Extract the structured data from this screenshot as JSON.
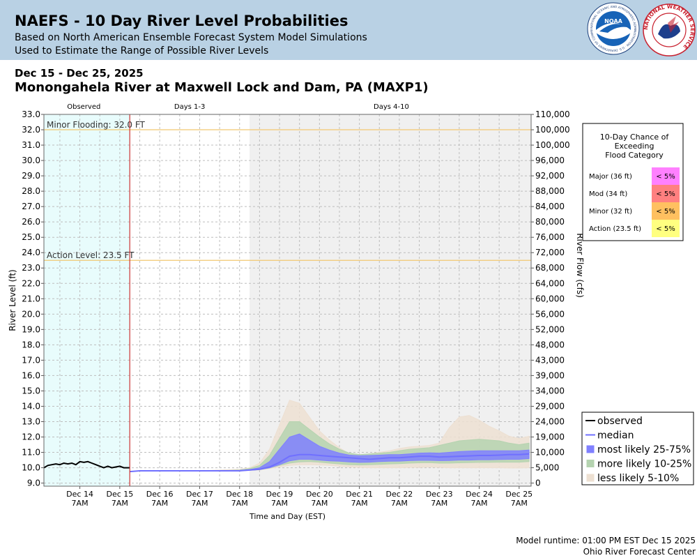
{
  "header": {
    "title": "NAEFS - 10 Day River Level Probabilities",
    "subtitle1": "Based on North American Ensemble Forecast System Model Simulations",
    "subtitle2": "Used to Estimate the Range of Possible River Levels",
    "noaa_logo_text": "NATIONAL OCEANIC AND ATMOSPHERIC ADMINISTRATION · U.S. DEPARTMENT OF COMMERCE",
    "noaa_logo_center": "NOAA",
    "nws_logo_text": "NATIONAL WEATHER SERVICE"
  },
  "date_range": "Dec 15 - Dec 25, 2025",
  "station": "Monongahela River at Maxwell Lock and Dam, PA (MAXP1)",
  "footer": {
    "runtime": "Model runtime: 01:00 PM EST Dec 15 2025",
    "center": "Ohio River Forecast Center"
  },
  "colors": {
    "observed_bg": "#e8fcfc",
    "forecast_bg": "#f0f0f0",
    "observed": "#000000",
    "median": "#7070ff",
    "band_25_75": "#8080ff",
    "band_10_25": "#b5d3b0",
    "band_5_10": "#ede0d2",
    "threshold_line": "#f2c870",
    "now_line": "#cc3333"
  },
  "chart_data": {
    "type": "area",
    "xlabel": "Time and Day (EST)",
    "ylabel": "River Level (ft)",
    "ylabel_right": "River Flow (cfs)",
    "ylim": [
      8.8,
      33.0
    ],
    "xlim": [
      13.1,
      25.3
    ],
    "now_x": 15.25,
    "forecast_shade_start": 18.25,
    "yticks": [
      "9.0",
      "10.0",
      "11.0",
      "12.0",
      "13.0",
      "14.0",
      "15.0",
      "16.0",
      "17.0",
      "18.0",
      "19.0",
      "20.0",
      "21.0",
      "22.0",
      "23.0",
      "24.0",
      "25.0",
      "26.0",
      "27.0",
      "28.0",
      "29.0",
      "30.0",
      "31.0",
      "32.0",
      "33.0"
    ],
    "flow_ticks": [
      {
        "stage": 9.0,
        "label": "0"
      },
      {
        "stage": 10.0,
        "label": "5,000"
      },
      {
        "stage": 11.0,
        "label": "10,000"
      },
      {
        "stage": 12.0,
        "label": "19,000"
      },
      {
        "stage": 13.0,
        "label": "24,000"
      },
      {
        "stage": 14.0,
        "label": "29,000"
      },
      {
        "stage": 15.0,
        "label": "34,000"
      },
      {
        "stage": 16.0,
        "label": "39,000"
      },
      {
        "stage": 17.0,
        "label": "43,000"
      },
      {
        "stage": 18.0,
        "label": "48,000"
      },
      {
        "stage": 19.0,
        "label": "52,000"
      },
      {
        "stage": 20.0,
        "label": "56,000"
      },
      {
        "stage": 21.0,
        "label": "60,000"
      },
      {
        "stage": 22.0,
        "label": "64,000"
      },
      {
        "stage": 23.0,
        "label": "68,000"
      },
      {
        "stage": 24.0,
        "label": "72,000"
      },
      {
        "stage": 25.0,
        "label": "76,000"
      },
      {
        "stage": 26.0,
        "label": "80,000"
      },
      {
        "stage": 27.0,
        "label": "84,000"
      },
      {
        "stage": 28.0,
        "label": "88,000"
      },
      {
        "stage": 29.0,
        "label": "92,000"
      },
      {
        "stage": 30.0,
        "label": "96,000"
      },
      {
        "stage": 31.0,
        "label": "100,000"
      },
      {
        "stage": 32.0,
        "label": "100,000"
      },
      {
        "stage": 33.0,
        "label": "110,000"
      }
    ],
    "xticks": [
      {
        "x": 14.0,
        "label1": "Dec 14",
        "label2": "7AM"
      },
      {
        "x": 15.0,
        "label1": "Dec 15",
        "label2": "7AM"
      },
      {
        "x": 16.0,
        "label1": "Dec 16",
        "label2": "7AM"
      },
      {
        "x": 17.0,
        "label1": "Dec 17",
        "label2": "7AM"
      },
      {
        "x": 18.0,
        "label1": "Dec 18",
        "label2": "7AM"
      },
      {
        "x": 19.0,
        "label1": "Dec 19",
        "label2": "7AM"
      },
      {
        "x": 20.0,
        "label1": "Dec 20",
        "label2": "7AM"
      },
      {
        "x": 21.0,
        "label1": "Dec 21",
        "label2": "7AM"
      },
      {
        "x": 22.0,
        "label1": "Dec 22",
        "label2": "7AM"
      },
      {
        "x": 23.0,
        "label1": "Dec 23",
        "label2": "7AM"
      },
      {
        "x": 24.0,
        "label1": "Dec 24",
        "label2": "7AM"
      },
      {
        "x": 25.0,
        "label1": "Dec 25",
        "label2": "7AM"
      }
    ],
    "period_labels": [
      {
        "x": 14.1,
        "label": "Observed"
      },
      {
        "x": 16.75,
        "label": "Days 1-3"
      },
      {
        "x": 21.8,
        "label": "Days 4-10"
      }
    ],
    "thresholds": [
      {
        "label": "Minor Flooding: 32.0 FT",
        "stage": 32.0
      },
      {
        "label": "Action Level: 23.5 FT",
        "stage": 23.5
      }
    ],
    "observed": {
      "x": [
        13.1,
        13.2,
        13.3,
        13.4,
        13.5,
        13.6,
        13.7,
        13.8,
        13.9,
        14.0,
        14.1,
        14.2,
        14.3,
        14.4,
        14.5,
        14.6,
        14.7,
        14.8,
        14.9,
        15.0,
        15.1,
        15.2,
        15.25
      ],
      "y": [
        10.0,
        10.15,
        10.2,
        10.25,
        10.2,
        10.3,
        10.25,
        10.3,
        10.2,
        10.4,
        10.35,
        10.4,
        10.3,
        10.2,
        10.1,
        10.0,
        10.1,
        10.0,
        10.05,
        10.1,
        10.0,
        10.0,
        10.0
      ]
    },
    "forecast_x": [
      15.25,
      15.5,
      16,
      16.5,
      17,
      17.5,
      18,
      18.25,
      18.5,
      18.75,
      19,
      19.25,
      19.5,
      19.75,
      20,
      20.25,
      20.5,
      20.75,
      21,
      21.25,
      21.5,
      21.75,
      22,
      22.25,
      22.5,
      22.75,
      23,
      23.25,
      23.5,
      23.75,
      24,
      24.25,
      24.5,
      24.75,
      25,
      25.25
    ],
    "median": [
      9.75,
      9.8,
      9.8,
      9.8,
      9.8,
      9.8,
      9.8,
      9.85,
      9.9,
      10.05,
      10.35,
      10.75,
      10.85,
      10.85,
      10.8,
      10.75,
      10.7,
      10.65,
      10.6,
      10.55,
      10.6,
      10.65,
      10.65,
      10.7,
      10.75,
      10.75,
      10.7,
      10.72,
      10.75,
      10.77,
      10.8,
      10.8,
      10.82,
      10.85,
      10.85,
      10.9
    ],
    "series": [
      {
        "name": "less likely 5-10%",
        "low": [
          9.75,
          9.8,
          9.8,
          9.8,
          9.8,
          9.8,
          9.8,
          9.82,
          9.85,
          9.95,
          10.05,
          10.15,
          10.2,
          10.2,
          10.18,
          10.15,
          10.1,
          10.05,
          10.02,
          10.0,
          10.0,
          10.0,
          10.0,
          10.02,
          10.02,
          10.05,
          10.02,
          10.0,
          10.0,
          10.0,
          10.0,
          10.0,
          10.0,
          9.98,
          9.98,
          10.0
        ],
        "high": [
          9.75,
          9.8,
          9.8,
          9.8,
          9.8,
          9.85,
          9.9,
          10.0,
          10.3,
          11.2,
          12.8,
          14.4,
          14.2,
          13.3,
          12.4,
          11.8,
          11.3,
          10.9,
          10.8,
          10.9,
          11.0,
          11.1,
          11.25,
          11.35,
          11.4,
          11.45,
          11.6,
          12.6,
          13.3,
          13.4,
          13.1,
          12.7,
          12.4,
          12.05,
          11.9,
          12.05
        ]
      },
      {
        "name": "more likely 10-25%",
        "low": [
          9.75,
          9.8,
          9.8,
          9.8,
          9.8,
          9.8,
          9.8,
          9.83,
          9.87,
          9.98,
          10.15,
          10.3,
          10.38,
          10.4,
          10.36,
          10.3,
          10.25,
          10.2,
          10.18,
          10.2,
          10.22,
          10.25,
          10.26,
          10.3,
          10.32,
          10.33,
          10.3,
          10.3,
          10.32,
          10.33,
          10.35,
          10.35,
          10.36,
          10.36,
          10.36,
          10.4
        ],
        "high": [
          9.75,
          9.8,
          9.8,
          9.8,
          9.8,
          9.8,
          9.85,
          9.95,
          10.15,
          10.8,
          11.9,
          13.0,
          13.0,
          12.5,
          12.0,
          11.55,
          11.2,
          10.95,
          10.85,
          10.9,
          10.95,
          11.0,
          11.1,
          11.2,
          11.25,
          11.3,
          11.45,
          11.6,
          11.75,
          11.8,
          11.85,
          11.8,
          11.75,
          11.6,
          11.5,
          11.6
        ]
      },
      {
        "name": "most likely 25-75%",
        "low": [
          9.75,
          9.8,
          9.8,
          9.8,
          9.8,
          9.8,
          9.8,
          9.84,
          9.88,
          10.0,
          10.2,
          10.45,
          10.55,
          10.55,
          10.5,
          10.45,
          10.42,
          10.38,
          10.35,
          10.36,
          10.4,
          10.42,
          10.43,
          10.46,
          10.48,
          10.48,
          10.46,
          10.47,
          10.5,
          10.5,
          10.52,
          10.52,
          10.54,
          10.55,
          10.55,
          10.6
        ],
        "high": [
          9.75,
          9.8,
          9.8,
          9.8,
          9.8,
          9.8,
          9.82,
          9.88,
          10.0,
          10.4,
          11.2,
          12.0,
          12.2,
          11.8,
          11.4,
          11.15,
          10.95,
          10.82,
          10.78,
          10.8,
          10.82,
          10.85,
          10.85,
          10.9,
          10.95,
          10.97,
          10.95,
          11.0,
          11.05,
          11.08,
          11.1,
          11.1,
          11.1,
          11.1,
          11.1,
          11.15
        ]
      }
    ],
    "legend": [
      {
        "key": "observed",
        "label": "observed"
      },
      {
        "key": "median",
        "label": "median"
      },
      {
        "key": "band_25_75",
        "label": "most likely 25-75%"
      },
      {
        "key": "band_10_25",
        "label": "more likely 10-25%"
      },
      {
        "key": "band_5_10",
        "label": "less likely 5-10%"
      }
    ],
    "flood_chance_table": {
      "title": [
        "10-Day Chance of",
        "Exceeding",
        "Flood Category"
      ],
      "rows": [
        {
          "label": "Major (36 ft)",
          "value": "< 5%",
          "color": "#ff80ff"
        },
        {
          "label": "Mod (34 ft)",
          "value": "< 5%",
          "color": "#ff8080"
        },
        {
          "label": "Minor (32 ft)",
          "value": "< 5%",
          "color": "#ffc060"
        },
        {
          "label": "Action (23.5 ft)",
          "value": "< 5%",
          "color": "#ffff80"
        }
      ]
    }
  }
}
